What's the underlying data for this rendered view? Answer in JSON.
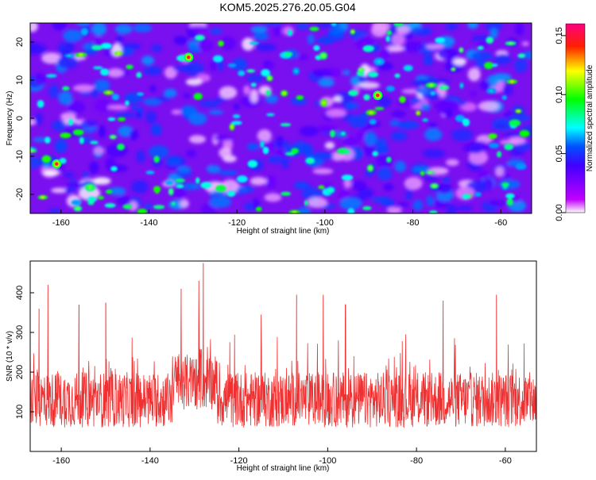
{
  "title": "KOM5.2025.276.20.05.G04",
  "chart_data": [
    {
      "type": "heatmap",
      "title": "KOM5.2025.276.20.05.G04",
      "xlabel": "Height of straight line (km)",
      "ylabel": "Frequency (Hz)",
      "xlim": [
        -167,
        -53
      ],
      "ylim": [
        -25,
        25
      ],
      "xticks": [
        -160,
        -140,
        -120,
        -100,
        -80,
        -60
      ],
      "yticks": [
        -20,
        -10,
        0,
        10,
        20
      ],
      "colorbar": {
        "label": "Normalized spectral amplitude",
        "range": [
          0,
          0.16
        ],
        "ticks": [
          0.0,
          0.05,
          0.1,
          0.15
        ],
        "tick_labels": [
          "0.00",
          "0.05",
          "0.10",
          "0.15"
        ],
        "colors": [
          "#ffffff",
          "#8000ff",
          "#0000ff",
          "#00ffff",
          "#00ff00",
          "#ffff00",
          "#ff0000",
          "#ff0080"
        ]
      },
      "notes_hotspots": [
        {
          "x": -131,
          "y": 16,
          "value": 0.15
        },
        {
          "x": -88,
          "y": 6,
          "value": 0.15
        },
        {
          "x": -161,
          "y": -12,
          "value": 0.14
        }
      ]
    },
    {
      "type": "line",
      "xlabel": "Height of straight line (km)",
      "ylabel": "SNR (10 * v/v)",
      "xlim": [
        -167,
        -53
      ],
      "ylim": [
        0,
        480
      ],
      "xticks": [
        -160,
        -140,
        -120,
        -100,
        -80,
        -60
      ],
      "yticks": [
        100,
        200,
        300,
        400
      ],
      "series": [
        {
          "name": "SNR",
          "color": "#f03030",
          "baseline": 130,
          "spread": 70,
          "peaks": [
            {
              "x": -165,
              "y": 360
            },
            {
              "x": -163,
              "y": 420
            },
            {
              "x": -156,
              "y": 370
            },
            {
              "x": -150,
              "y": 375
            },
            {
              "x": -133,
              "y": 410
            },
            {
              "x": -129,
              "y": 430
            },
            {
              "x": -128,
              "y": 475
            },
            {
              "x": -115,
              "y": 345
            },
            {
              "x": -107,
              "y": 395
            },
            {
              "x": -101,
              "y": 395
            },
            {
              "x": -96,
              "y": 370
            },
            {
              "x": -74,
              "y": 380
            },
            {
              "x": -62,
              "y": 395
            }
          ]
        }
      ]
    }
  ]
}
